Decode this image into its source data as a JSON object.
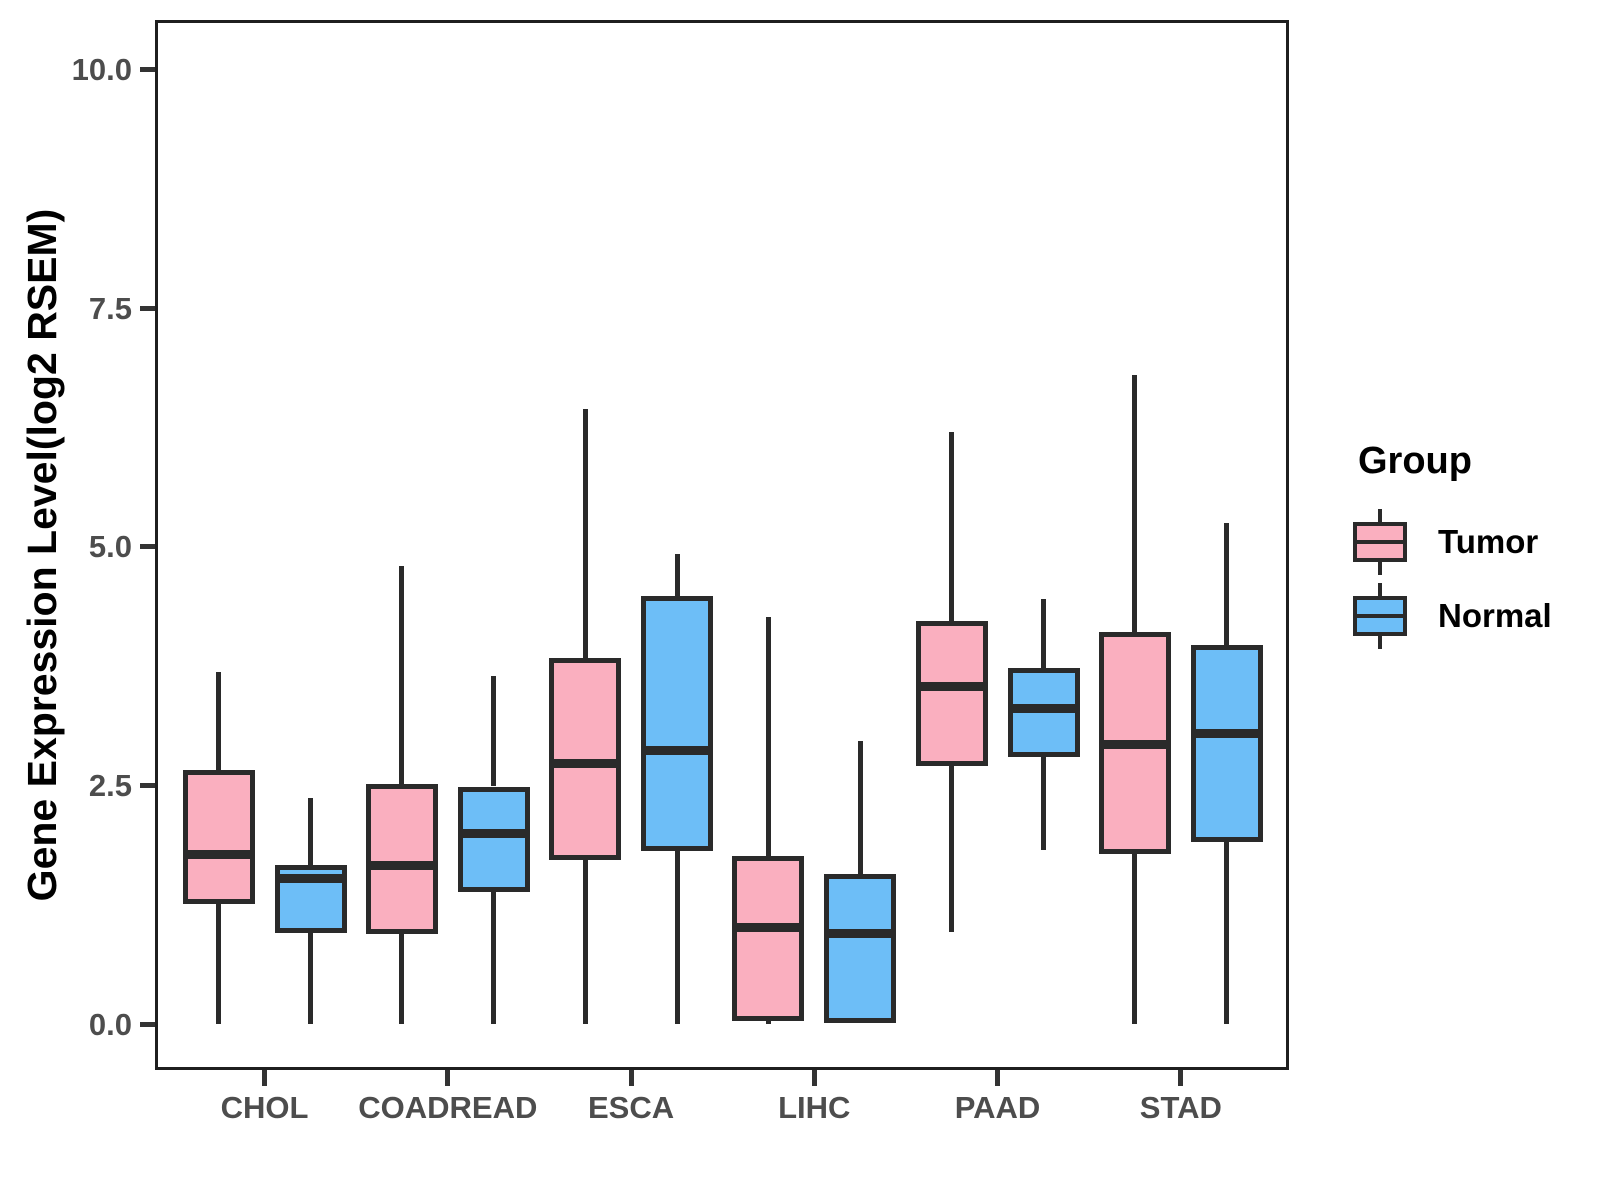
{
  "figure": {
    "y_axis_title": "Gene Expression Level(log2 RSEM)",
    "colors": {
      "tumor_fill": "#FAAFBF",
      "normal_fill": "#6DBEF7",
      "box_line": "#2a2a2a",
      "tick_text": "#4d4d4d",
      "panel_border": "#1f1f1f"
    }
  },
  "legend": {
    "title": "Group",
    "position": "right",
    "entries": [
      {
        "label": "Tumor",
        "color": "#FAAFBF"
      },
      {
        "label": "Normal",
        "color": "#6DBEF7"
      }
    ]
  },
  "chart_data": {
    "type": "grouped_boxplot",
    "title": "",
    "xlabel": "",
    "ylabel": "Gene Expression Level(log2 RSEM)",
    "categories": [
      "CHOL",
      "COADREAD",
      "ESCA",
      "LIHC",
      "PAAD",
      "STAD"
    ],
    "y_ticks": [
      0.0,
      2.5,
      5.0,
      7.5,
      10.0
    ],
    "y_tick_labels": [
      "0.0",
      "2.5",
      "5.0",
      "7.5",
      "10.0"
    ],
    "ylim": [
      -0.48,
      10.52
    ],
    "grid": false,
    "legend_position": "right",
    "series": [
      {
        "name": "Tumor",
        "color": "#FAAFBF",
        "boxes": [
          {
            "category": "CHOL",
            "min": 0.0,
            "q1": 1.26,
            "median": 1.78,
            "q3": 2.66,
            "max": 3.69
          },
          {
            "category": "COADREAD",
            "min": 0.0,
            "q1": 0.94,
            "median": 1.66,
            "q3": 2.52,
            "max": 4.8
          },
          {
            "category": "ESCA",
            "min": 0.0,
            "q1": 1.72,
            "median": 2.73,
            "q3": 3.84,
            "max": 6.44
          },
          {
            "category": "LIHC",
            "min": 0.0,
            "q1": 0.03,
            "median": 1.01,
            "q3": 1.76,
            "max": 4.27
          },
          {
            "category": "PAAD",
            "min": 0.97,
            "q1": 2.7,
            "median": 3.54,
            "q3": 4.22,
            "max": 6.2
          },
          {
            "category": "STAD",
            "min": 0.0,
            "q1": 1.78,
            "median": 2.93,
            "q3": 4.11,
            "max": 6.8
          }
        ]
      },
      {
        "name": "Normal",
        "color": "#6DBEF7",
        "boxes": [
          {
            "category": "CHOL",
            "min": 0.0,
            "q1": 0.96,
            "median": 1.53,
            "q3": 1.67,
            "max": 2.37
          },
          {
            "category": "COADREAD",
            "min": 0.0,
            "q1": 1.39,
            "median": 2.0,
            "q3": 2.49,
            "max": 3.65
          },
          {
            "category": "ESCA",
            "min": 0.0,
            "q1": 1.81,
            "median": 2.87,
            "q3": 4.49,
            "max": 4.93
          },
          {
            "category": "LIHC",
            "min": 0.0,
            "q1": 0.01,
            "median": 0.95,
            "q3": 1.57,
            "max": 2.97
          },
          {
            "category": "PAAD",
            "min": 1.82,
            "q1": 2.8,
            "median": 3.31,
            "q3": 3.73,
            "max": 4.45
          },
          {
            "category": "STAD",
            "min": 0.0,
            "q1": 1.91,
            "median": 3.05,
            "q3": 3.97,
            "max": 5.25
          }
        ]
      }
    ]
  }
}
